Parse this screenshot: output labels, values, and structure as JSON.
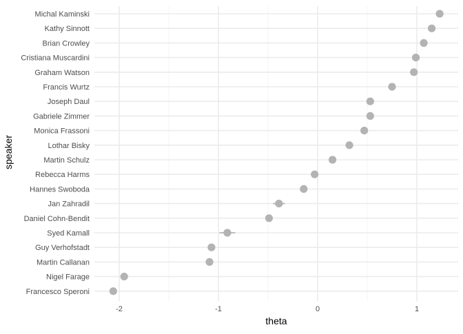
{
  "chart_data": {
    "type": "scatter",
    "xlabel": "theta",
    "ylabel": "speaker",
    "xlim": [
      -2.3,
      1.4
    ],
    "x_ticks": [
      -2,
      -1,
      0,
      1
    ],
    "x_tick_labels": [
      "-2",
      "-1",
      "0",
      "1"
    ],
    "grid": true,
    "legend": "none",
    "categories": [
      "Michal Kaminski",
      "Kathy Sinnott",
      "Brian Crowley",
      "Cristiana Muscardini",
      "Graham Watson",
      "Francis Wurtz",
      "Joseph Daul",
      "Gabriele Zimmer",
      "Monica Frassoni",
      "Lothar Bisky",
      "Martin Schulz",
      "Rebecca Harms",
      "Hannes Swoboda",
      "Jan Zahradil",
      "Daniel Cohn-Bendit",
      "Syed Kamall",
      "Guy Verhofstadt",
      "Martin Callanan",
      "Nigel Farage",
      "Francesco Speroni"
    ],
    "values": [
      1.23,
      1.15,
      1.07,
      0.99,
      0.97,
      0.75,
      0.53,
      0.53,
      0.47,
      0.32,
      0.15,
      -0.03,
      -0.14,
      -0.39,
      -0.49,
      -0.91,
      -1.07,
      -1.09,
      -1.95,
      -2.06
    ],
    "ci_low": [
      1.21,
      1.13,
      1.05,
      0.97,
      0.95,
      0.73,
      0.51,
      0.51,
      0.45,
      0.3,
      0.13,
      -0.05,
      -0.16,
      -0.45,
      -0.51,
      -0.99,
      -1.09,
      -1.11,
      -1.97,
      -2.08
    ],
    "ci_high": [
      1.25,
      1.17,
      1.09,
      1.01,
      0.99,
      0.77,
      0.55,
      0.55,
      0.49,
      0.34,
      0.17,
      -0.01,
      -0.12,
      -0.33,
      -0.47,
      -0.83,
      -1.05,
      -1.07,
      -1.93,
      -2.04
    ],
    "colors": {
      "point": "#b3b3b3",
      "interval": "#b3b3b3",
      "grid_major": "#ebebeb",
      "grid_minor": "#f4f4f4",
      "tick_text": "#4d4d4d",
      "axis_title": "#000000"
    }
  }
}
